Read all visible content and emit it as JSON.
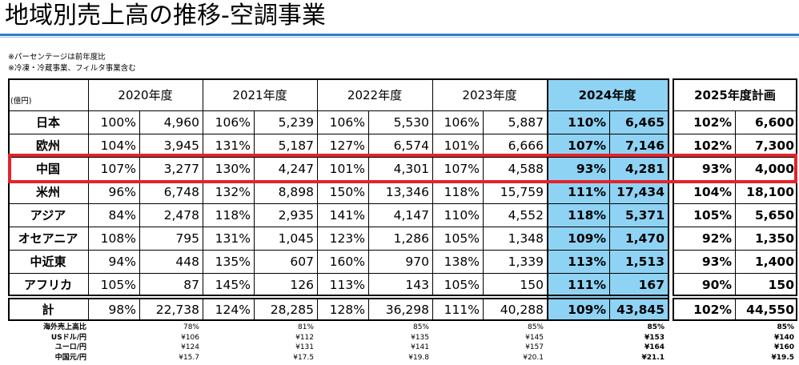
{
  "title": "地域別売上高の推移-空調事業",
  "notes": [
    "※パーセンテージは前年度比",
    "※冷凍・冷蔵事業、フィルタ事業含む"
  ],
  "unit": "(億円)",
  "years": [
    "2020年度",
    "2021年度",
    "2022年度",
    "2023年度",
    "2024年度",
    "2025年度計画"
  ],
  "rows": [
    {
      "label": "日本",
      "v": [
        [
          "100%",
          "4,960"
        ],
        [
          "106%",
          "5,239"
        ],
        [
          "106%",
          "5,530"
        ],
        [
          "106%",
          "5,887"
        ],
        [
          "110%",
          "6,465"
        ],
        [
          "102%",
          "6,600"
        ]
      ]
    },
    {
      "label": "欧州",
      "v": [
        [
          "104%",
          "3,945"
        ],
        [
          "131%",
          "5,187"
        ],
        [
          "127%",
          "6,574"
        ],
        [
          "101%",
          "6,666"
        ],
        [
          "107%",
          "7,146"
        ],
        [
          "102%",
          "7,300"
        ]
      ]
    },
    {
      "label": "中国",
      "v": [
        [
          "107%",
          "3,277"
        ],
        [
          "130%",
          "4,247"
        ],
        [
          "101%",
          "4,301"
        ],
        [
          "107%",
          "4,588"
        ],
        [
          "93%",
          "4,281"
        ],
        [
          "93%",
          "4,000"
        ]
      ]
    },
    {
      "label": "米州",
      "v": [
        [
          "96%",
          "6,748"
        ],
        [
          "132%",
          "8,898"
        ],
        [
          "150%",
          "13,346"
        ],
        [
          "118%",
          "15,759"
        ],
        [
          "111%",
          "17,434"
        ],
        [
          "104%",
          "18,100"
        ]
      ]
    },
    {
      "label": "アジア",
      "v": [
        [
          "84%",
          "2,478"
        ],
        [
          "118%",
          "2,935"
        ],
        [
          "141%",
          "4,147"
        ],
        [
          "110%",
          "4,552"
        ],
        [
          "118%",
          "5,371"
        ],
        [
          "105%",
          "5,650"
        ]
      ]
    },
    {
      "label": "オセアニア",
      "v": [
        [
          "108%",
          "795"
        ],
        [
          "131%",
          "1,045"
        ],
        [
          "123%",
          "1,286"
        ],
        [
          "105%",
          "1,348"
        ],
        [
          "109%",
          "1,470"
        ],
        [
          "92%",
          "1,350"
        ]
      ]
    },
    {
      "label": "中近東",
      "v": [
        [
          "94%",
          "448"
        ],
        [
          "135%",
          "607"
        ],
        [
          "160%",
          "970"
        ],
        [
          "138%",
          "1,339"
        ],
        [
          "113%",
          "1,513"
        ],
        [
          "93%",
          "1,400"
        ]
      ]
    },
    {
      "label": "アフリカ",
      "v": [
        [
          "105%",
          "87"
        ],
        [
          "145%",
          "126"
        ],
        [
          "113%",
          "143"
        ],
        [
          "105%",
          "150"
        ],
        [
          "111%",
          "167"
        ],
        [
          "90%",
          "150"
        ]
      ]
    },
    {
      "label": "計",
      "v": [
        [
          "98%",
          "22,738"
        ],
        [
          "124%",
          "28,285"
        ],
        [
          "128%",
          "36,298"
        ],
        [
          "111%",
          "40,288"
        ],
        [
          "109%",
          "43,845"
        ],
        [
          "102%",
          "44,550"
        ]
      ]
    }
  ],
  "footer": [
    {
      "label": "海外売上高比",
      "v": [
        "78%",
        "81%",
        "85%",
        "85%",
        "85%",
        "85%"
      ]
    },
    {
      "label": "USドル/円",
      "v": [
        "¥106",
        "¥112",
        "¥135",
        "¥145",
        "¥153",
        "¥140"
      ]
    },
    {
      "label": "ユーロ/円",
      "v": [
        "¥124",
        "¥131",
        "¥141",
        "¥157",
        "¥164",
        "¥160"
      ]
    },
    {
      "label": "中国元/円",
      "v": [
        "¥15.7",
        "¥17.5",
        "¥19.8",
        "¥20.1",
        "¥21.1",
        "¥19.5"
      ]
    }
  ],
  "highlight_color": "#8fd3f4",
  "accent_color": "#e3242b"
}
